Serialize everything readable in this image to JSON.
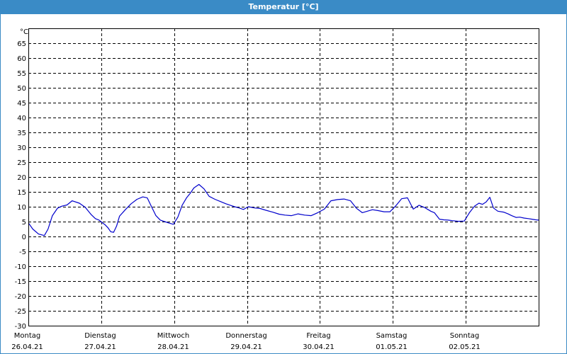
{
  "window": {
    "title": "Temperatur [°C]"
  },
  "colors": {
    "title_bar": "#3a8bc6",
    "line": "#0000cc",
    "grid": "#000000"
  },
  "chart_data": {
    "type": "line",
    "title": "Temperatur [°C]",
    "ylabel": "°C",
    "ylim": [
      -30,
      70
    ],
    "yticks": [
      65,
      60,
      55,
      50,
      45,
      40,
      35,
      30,
      25,
      20,
      15,
      10,
      5,
      0,
      -5,
      -10,
      -15,
      -20,
      -25,
      -30
    ],
    "xlim": [
      0,
      7
    ],
    "grid": true,
    "x_ticks": [
      {
        "x": 0,
        "day": "Montag",
        "date": "26.04.21"
      },
      {
        "x": 1,
        "day": "Dienstag",
        "date": "27.04.21"
      },
      {
        "x": 2,
        "day": "Mittwoch",
        "date": "28.04.21"
      },
      {
        "x": 3,
        "day": "Donnerstag",
        "date": "29.04.21"
      },
      {
        "x": 4,
        "day": "Freitag",
        "date": "30.04.21"
      },
      {
        "x": 5,
        "day": "Samstag",
        "date": "01.05.21"
      },
      {
        "x": 6,
        "day": "Sonntag",
        "date": "02.05.21"
      }
    ],
    "series": [
      {
        "color": "#0000cc",
        "x": [
          0,
          0.06,
          0.14,
          0.22,
          0.27,
          0.33,
          0.4,
          0.46,
          0.53,
          0.6,
          0.7,
          0.78,
          0.86,
          0.92,
          0.97,
          1.01,
          1.05,
          1.09,
          1.13,
          1.17,
          1.21,
          1.25,
          1.33,
          1.41,
          1.49,
          1.57,
          1.63,
          1.69,
          1.75,
          1.81,
          1.87,
          1.93,
          1.99,
          2.05,
          2.11,
          2.17,
          2.22,
          2.27,
          2.34,
          2.41,
          2.48,
          2.56,
          2.63,
          2.71,
          2.77,
          2.83,
          2.89,
          2.95,
          3.02,
          3.1,
          3.18,
          3.26,
          3.35,
          3.44,
          3.52,
          3.61,
          3.7,
          3.79,
          3.88,
          3.97,
          4.06,
          4.15,
          4.24,
          4.33,
          4.42,
          4.5,
          4.58,
          4.65,
          4.72,
          4.8,
          4.88,
          4.96,
          5.04,
          5.12,
          5.2,
          5.28,
          5.36,
          5.44,
          5.52,
          5.57,
          5.64,
          5.7,
          5.76,
          5.82,
          5.9,
          5.98,
          6.05,
          6.12,
          6.18,
          6.23,
          6.28,
          6.33,
          6.38,
          6.44,
          6.52,
          6.58,
          6.63,
          6.69,
          6.74,
          6.8,
          6.86,
          6.91,
          6.96,
          7.0
        ],
        "values": [
          4.6,
          2.5,
          0.8,
          0.3,
          2.5,
          7.0,
          9.5,
          10.2,
          10.6,
          12.0,
          11.2,
          9.8,
          7.4,
          6.0,
          5.5,
          4.7,
          4.0,
          3.0,
          1.6,
          1.4,
          3.5,
          6.8,
          9.0,
          11.0,
          12.5,
          13.3,
          13.0,
          10.0,
          7.0,
          5.5,
          5.0,
          4.5,
          4.1,
          6.5,
          10.5,
          13.0,
          14.5,
          16.3,
          17.5,
          16.0,
          13.5,
          12.5,
          11.8,
          11.0,
          10.5,
          10.0,
          9.6,
          9.1,
          10.0,
          9.6,
          9.4,
          8.8,
          8.2,
          7.5,
          7.2,
          7.0,
          7.6,
          7.2,
          7.0,
          8.0,
          9.2,
          12.0,
          12.4,
          12.6,
          12.0,
          9.5,
          8.0,
          8.5,
          9.0,
          8.7,
          8.3,
          8.3,
          10.3,
          12.7,
          13.0,
          9.2,
          10.5,
          9.7,
          8.5,
          8.0,
          5.8,
          5.6,
          5.5,
          5.3,
          5.1,
          5.2,
          8.0,
          10.2,
          11.2,
          10.8,
          11.6,
          13.2,
          9.6,
          8.5,
          8.2,
          7.6,
          7.0,
          6.4,
          6.5,
          6.2,
          6.0,
          5.8,
          5.6,
          5.5
        ]
      }
    ]
  }
}
